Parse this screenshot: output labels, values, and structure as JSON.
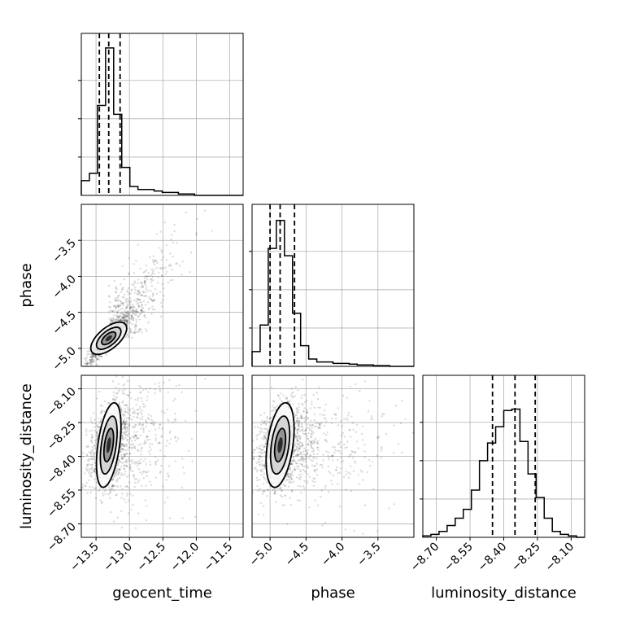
{
  "chart_data": {
    "type": "corner",
    "grid": true,
    "parameters": [
      {
        "name": "geocent_time",
        "range": [
          -13.72,
          -11.3
        ],
        "ticks": [
          -13.5,
          -13.0,
          -12.5,
          -12.0,
          -11.5
        ],
        "tick_labels": [
          "−13.5",
          "−13.0",
          "−12.5",
          "−12.0",
          "−11.5"
        ],
        "quantiles": [
          -13.45,
          -13.31,
          -13.14
        ],
        "hist": [
          0.1,
          0.15,
          0.61,
          1.0,
          0.55,
          0.19,
          0.06,
          0.04,
          0.04,
          0.03,
          0.02,
          0.02,
          0.01,
          0.01,
          0.0,
          0.0,
          0.0,
          0.0,
          0.0,
          0.0
        ]
      },
      {
        "name": "phase",
        "range": [
          -5.25,
          -3.0
        ],
        "ticks": [
          -5.0,
          -4.5,
          -4.0,
          -3.5
        ],
        "tick_labels": [
          "−5.0",
          "−4.5",
          "−4.0",
          "−3.5"
        ],
        "quantiles": [
          -5.0,
          -4.86,
          -4.66
        ],
        "hist": [
          0.1,
          0.28,
          0.8,
          0.99,
          0.75,
          0.36,
          0.14,
          0.05,
          0.03,
          0.03,
          0.02,
          0.02,
          0.015,
          0.01,
          0.01,
          0.005,
          0.005,
          0.0,
          0.0,
          0.0
        ]
      },
      {
        "name": "luminosity_distance",
        "range": [
          -8.76,
          -8.04
        ],
        "ticks": [
          -8.7,
          -8.55,
          -8.4,
          -8.25,
          -8.1
        ],
        "tick_labels": [
          "−8.70",
          "−8.55",
          "−8.40",
          "−8.25",
          "−8.10"
        ],
        "quantiles": [
          -8.45,
          -8.35,
          -8.26
        ],
        "hist": [
          0.01,
          0.02,
          0.04,
          0.08,
          0.13,
          0.19,
          0.32,
          0.52,
          0.64,
          0.75,
          0.86,
          0.87,
          0.65,
          0.43,
          0.27,
          0.13,
          0.04,
          0.02,
          0.01,
          0.0
        ]
      }
    ],
    "pairs": [
      {
        "x": "geocent_time",
        "y": "phase",
        "correlation": 0.9
      },
      {
        "x": "geocent_time",
        "y": "luminosity_distance",
        "correlation": 0.35
      },
      {
        "x": "phase",
        "y": "luminosity_distance",
        "correlation": 0.2
      }
    ],
    "colors": {
      "line": "#000000",
      "grid": "#b0b0b0",
      "density": "#000000"
    }
  }
}
